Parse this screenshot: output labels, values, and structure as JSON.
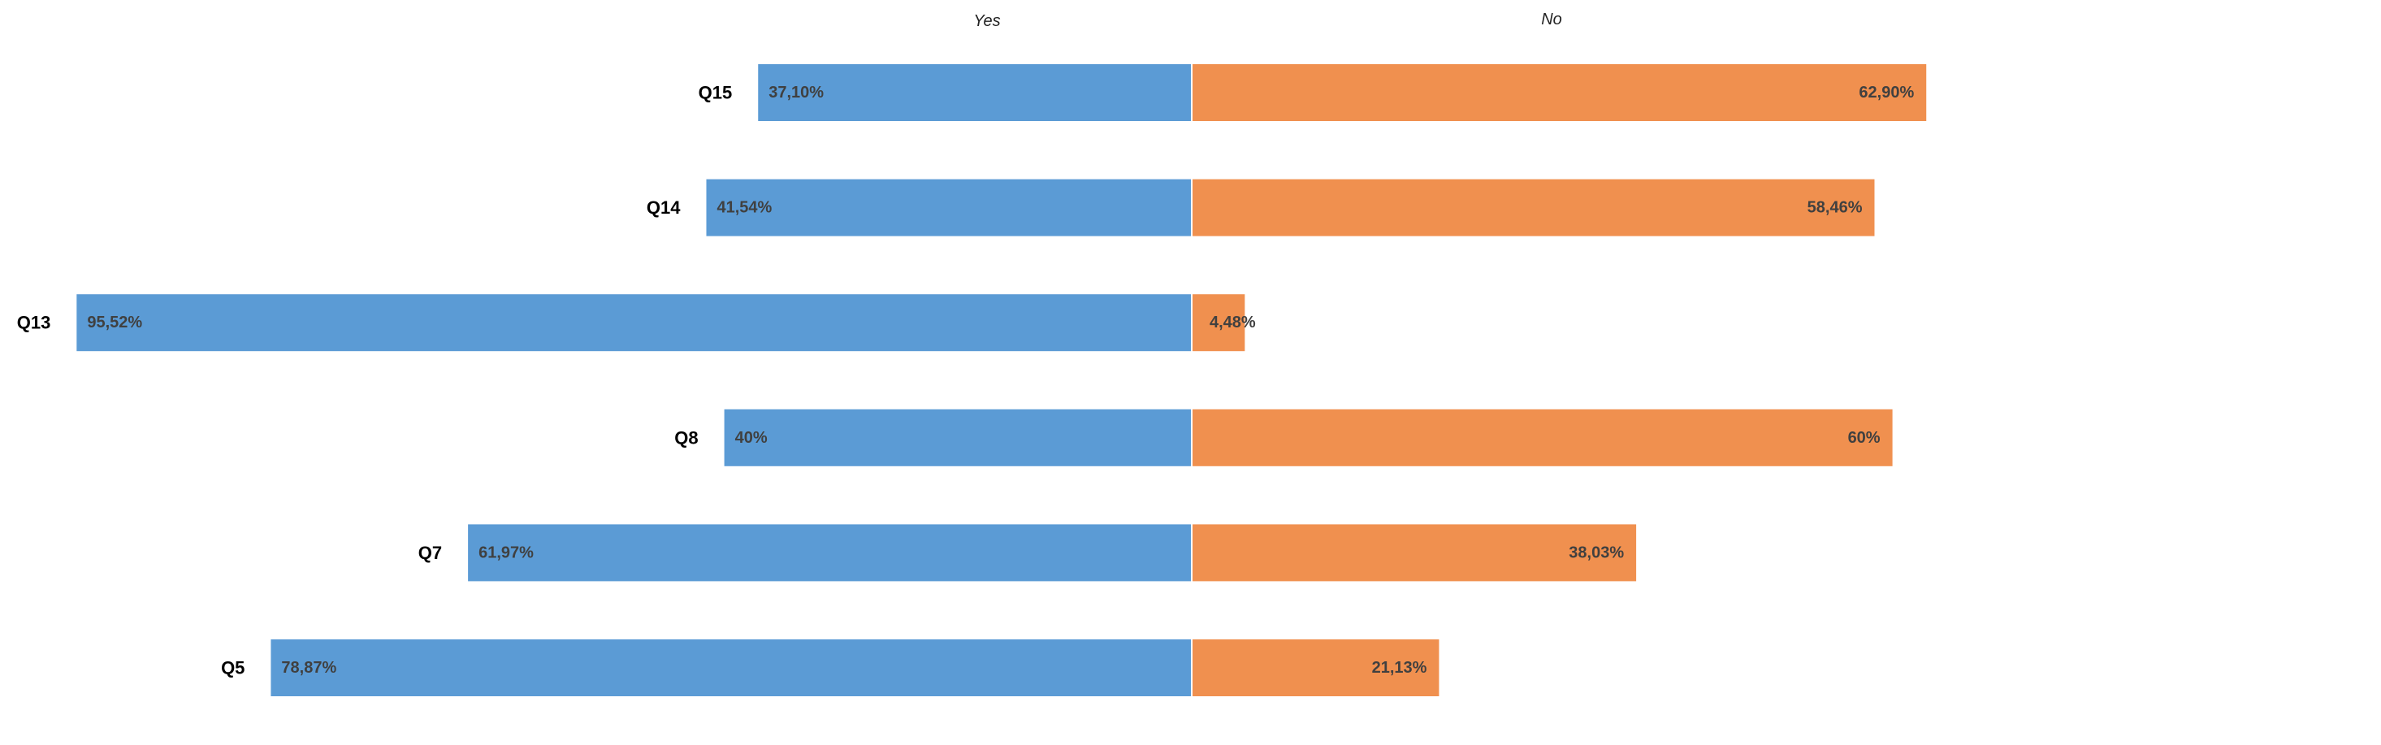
{
  "chart_data": {
    "type": "bar",
    "orientation": "horizontal-diverging",
    "categories": [
      "Q15",
      "Q14",
      "Q13",
      "Q8",
      "Q7",
      "Q5"
    ],
    "series": [
      {
        "name": "Yes",
        "values": [
          37.1,
          41.54,
          95.52,
          40,
          61.97,
          78.87
        ],
        "labels": [
          "37,10%",
          "41,54%",
          "95,52%",
          "40%",
          "61,97%",
          "78,87%"
        ],
        "color": "#5B9BD5"
      },
      {
        "name": "No",
        "values": [
          62.9,
          58.46,
          4.48,
          60,
          38.03,
          21.13
        ],
        "labels": [
          "62,90%",
          "58,46%",
          "4,48%",
          "60%",
          "38,03%",
          "21,13%"
        ],
        "color": "#F0904F"
      }
    ],
    "unit": "%",
    "grid": false,
    "legend": "column headers at top"
  }
}
